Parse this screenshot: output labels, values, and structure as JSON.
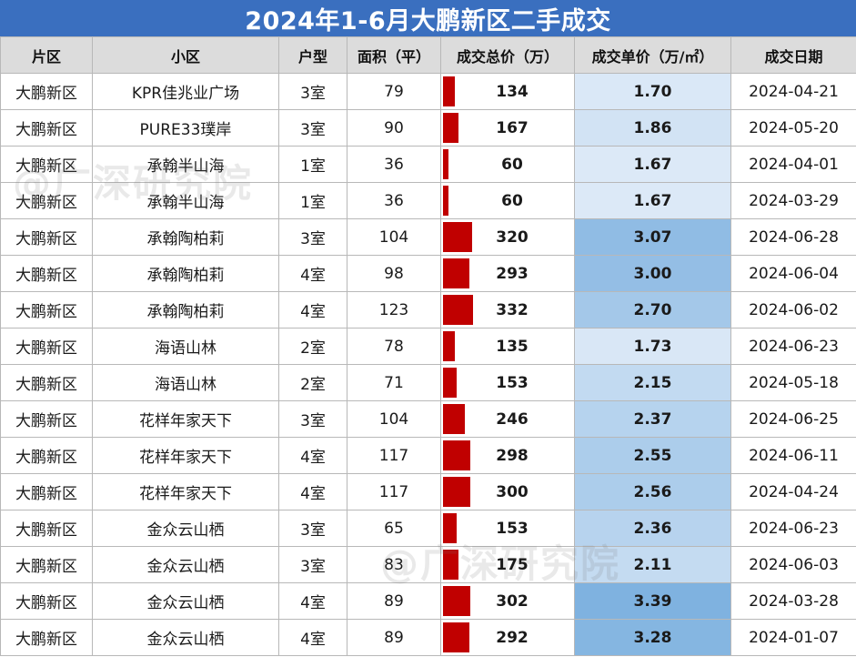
{
  "title": "2024年1-6月大鹏新区二手成交",
  "watermark": "@广深研究院",
  "headers": [
    "片区",
    "小区",
    "户型",
    "面积（平）",
    "成交总价（万）",
    "成交单价（万/㎡）",
    "成交日期"
  ],
  "colors": {
    "title_bg": "#3a6fbf",
    "header_bg": "#dcdcdc",
    "bar": "#c00000",
    "unit_low": "#dce9f7",
    "unit_high": "#7fb2e0"
  },
  "rows": [
    [
      "大鹏新区",
      "KPR佳兆业广场",
      "3室",
      "79",
      "134",
      "1.70",
      "2024-04-21"
    ],
    [
      "大鹏新区",
      "PURE33璞岸",
      "3室",
      "90",
      "167",
      "1.86",
      "2024-05-20"
    ],
    [
      "大鹏新区",
      "承翰半山海",
      "1室",
      "36",
      "60",
      "1.67",
      "2024-04-01"
    ],
    [
      "大鹏新区",
      "承翰半山海",
      "1室",
      "36",
      "60",
      "1.67",
      "2024-03-29"
    ],
    [
      "大鹏新区",
      "承翰陶柏莉",
      "3室",
      "104",
      "320",
      "3.07",
      "2024-06-28"
    ],
    [
      "大鹏新区",
      "承翰陶柏莉",
      "4室",
      "98",
      "293",
      "3.00",
      "2024-06-04"
    ],
    [
      "大鹏新区",
      "承翰陶柏莉",
      "4室",
      "123",
      "332",
      "2.70",
      "2024-06-02"
    ],
    [
      "大鹏新区",
      "海语山林",
      "2室",
      "78",
      "135",
      "1.73",
      "2024-06-23"
    ],
    [
      "大鹏新区",
      "海语山林",
      "2室",
      "71",
      "153",
      "2.15",
      "2024-05-18"
    ],
    [
      "大鹏新区",
      "花样年家天下",
      "3室",
      "104",
      "246",
      "2.37",
      "2024-06-25"
    ],
    [
      "大鹏新区",
      "花样年家天下",
      "4室",
      "117",
      "298",
      "2.55",
      "2024-06-11"
    ],
    [
      "大鹏新区",
      "花样年家天下",
      "4室",
      "117",
      "300",
      "2.56",
      "2024-04-24"
    ],
    [
      "大鹏新区",
      "金众云山栖",
      "3室",
      "65",
      "153",
      "2.36",
      "2024-06-23"
    ],
    [
      "大鹏新区",
      "金众云山栖",
      "3室",
      "83",
      "175",
      "2.11",
      "2024-06-03"
    ],
    [
      "大鹏新区",
      "金众云山栖",
      "4室",
      "89",
      "302",
      "3.39",
      "2024-03-28"
    ],
    [
      "大鹏新区",
      "金众云山栖",
      "4室",
      "89",
      "292",
      "3.28",
      "2024-01-07"
    ]
  ]
}
